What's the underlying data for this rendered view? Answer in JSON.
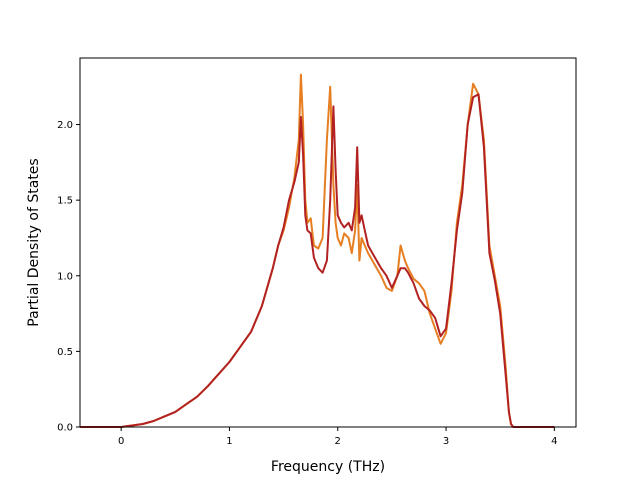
{
  "chart_data": {
    "type": "line",
    "title": "",
    "xlabel": "Frequency (THz)",
    "ylabel": "Partial Density of States",
    "xlim": [
      -0.38,
      4.2
    ],
    "ylim": [
      0,
      2.44
    ],
    "xticks": [
      0,
      1,
      2,
      3,
      4
    ],
    "xtick_labels": [
      "0",
      "1",
      "2",
      "3",
      "4"
    ],
    "yticks": [
      0,
      0.5,
      1,
      1.5,
      2
    ],
    "ytick_labels": [
      "0.0",
      "0.5",
      "1.0",
      "1.5",
      "2.0"
    ],
    "grid": false,
    "legend": "none",
    "series": [
      {
        "color": "#e67e22",
        "x": [
          -0.38,
          0,
          0.1,
          0.2,
          0.3,
          0.4,
          0.5,
          0.6,
          0.7,
          0.8,
          0.9,
          1.0,
          1.1,
          1.2,
          1.3,
          1.4,
          1.45,
          1.5,
          1.55,
          1.6,
          1.64,
          1.66,
          1.68,
          1.7,
          1.72,
          1.75,
          1.78,
          1.82,
          1.86,
          1.9,
          1.93,
          1.96,
          1.98,
          2.0,
          2.03,
          2.06,
          2.1,
          2.13,
          2.16,
          2.18,
          2.2,
          2.22,
          2.25,
          2.28,
          2.32,
          2.36,
          2.4,
          2.45,
          2.5,
          2.55,
          2.58,
          2.62,
          2.65,
          2.7,
          2.75,
          2.8,
          2.85,
          2.9,
          2.95,
          3.0,
          3.05,
          3.1,
          3.15,
          3.2,
          3.25,
          3.3,
          3.35,
          3.4,
          3.45,
          3.5,
          3.55,
          3.58,
          3.6,
          3.62,
          3.65,
          3.7,
          4.0
        ],
        "y": [
          0,
          0,
          0.01,
          0.02,
          0.04,
          0.07,
          0.1,
          0.15,
          0.2,
          0.27,
          0.35,
          0.43,
          0.53,
          0.63,
          0.8,
          1.05,
          1.2,
          1.3,
          1.45,
          1.65,
          1.9,
          2.33,
          2.0,
          1.5,
          1.35,
          1.38,
          1.2,
          1.18,
          1.25,
          1.9,
          2.25,
          1.6,
          1.35,
          1.25,
          1.2,
          1.28,
          1.25,
          1.15,
          1.3,
          1.6,
          1.1,
          1.25,
          1.2,
          1.15,
          1.1,
          1.05,
          1.0,
          0.92,
          0.9,
          1.0,
          1.2,
          1.1,
          1.05,
          0.98,
          0.95,
          0.9,
          0.75,
          0.65,
          0.55,
          0.62,
          0.9,
          1.35,
          1.6,
          2.0,
          2.27,
          2.2,
          1.9,
          1.2,
          1.0,
          0.8,
          0.4,
          0.1,
          0.02,
          0,
          0,
          0,
          0
        ]
      },
      {
        "color": "#b22222",
        "x": [
          -0.38,
          0,
          0.1,
          0.2,
          0.3,
          0.4,
          0.5,
          0.6,
          0.7,
          0.8,
          0.9,
          1.0,
          1.1,
          1.2,
          1.3,
          1.4,
          1.45,
          1.5,
          1.55,
          1.6,
          1.64,
          1.66,
          1.68,
          1.7,
          1.72,
          1.75,
          1.78,
          1.82,
          1.86,
          1.9,
          1.93,
          1.96,
          1.98,
          2.0,
          2.03,
          2.06,
          2.1,
          2.13,
          2.16,
          2.18,
          2.2,
          2.22,
          2.25,
          2.28,
          2.32,
          2.36,
          2.4,
          2.45,
          2.5,
          2.55,
          2.58,
          2.62,
          2.65,
          2.7,
          2.75,
          2.8,
          2.85,
          2.9,
          2.95,
          3.0,
          3.05,
          3.1,
          3.15,
          3.2,
          3.25,
          3.3,
          3.35,
          3.4,
          3.45,
          3.5,
          3.55,
          3.58,
          3.6,
          3.62,
          3.65,
          3.7,
          4.0
        ],
        "y": [
          0,
          0,
          0.01,
          0.02,
          0.04,
          0.07,
          0.1,
          0.15,
          0.2,
          0.27,
          0.35,
          0.43,
          0.53,
          0.63,
          0.8,
          1.05,
          1.2,
          1.32,
          1.5,
          1.62,
          1.75,
          2.05,
          1.8,
          1.4,
          1.3,
          1.28,
          1.12,
          1.05,
          1.02,
          1.1,
          1.5,
          2.12,
          1.7,
          1.4,
          1.35,
          1.32,
          1.35,
          1.3,
          1.45,
          1.85,
          1.35,
          1.4,
          1.3,
          1.2,
          1.15,
          1.1,
          1.05,
          1.0,
          0.92,
          1.0,
          1.05,
          1.05,
          1.02,
          0.95,
          0.85,
          0.8,
          0.77,
          0.72,
          0.6,
          0.65,
          0.95,
          1.3,
          1.55,
          2.0,
          2.18,
          2.2,
          1.85,
          1.15,
          0.97,
          0.75,
          0.35,
          0.1,
          0.02,
          0,
          0,
          0,
          0
        ]
      }
    ]
  }
}
